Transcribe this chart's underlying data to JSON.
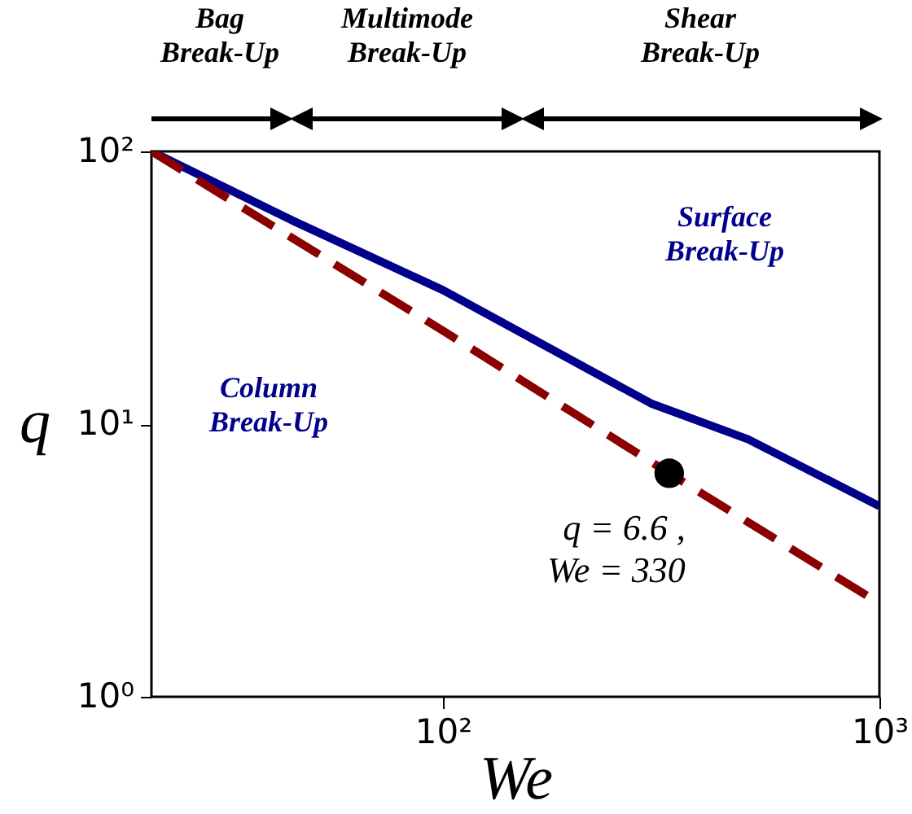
{
  "chart_data": {
    "type": "line",
    "xlabel": "We",
    "ylabel": "q",
    "log": "xy",
    "xlim": [
      21.5,
      1000
    ],
    "ylim": [
      1,
      100
    ],
    "xticks": [
      {
        "value": 100,
        "label": "10²"
      },
      {
        "value": 1000,
        "label": "10³"
      }
    ],
    "yticks": [
      {
        "value": 1,
        "label": "10⁰"
      },
      {
        "value": 10,
        "label": "10¹"
      },
      {
        "value": 100,
        "label": "10²"
      }
    ],
    "series": [
      {
        "color": "#00008b",
        "line_style": "solid",
        "x": [
          21.5,
          45,
          100,
          300,
          500,
          1000
        ],
        "values": [
          100,
          56,
          31,
          11.9,
          8.8,
          5.0
        ]
      },
      {
        "color": "#8b0000",
        "line_style": "dashed",
        "x": [
          21.5,
          100,
          330,
          1000
        ],
        "values": [
          100,
          22,
          6.6,
          2.2
        ]
      },
      {
        "type": "scatter",
        "color": "#000000",
        "marker": "circle",
        "x": [
          330
        ],
        "values": [
          6.6
        ]
      }
    ],
    "annotations": [
      "Bag\nBreak-Up",
      "Multimode\nBreak-Up",
      "Shear\nBreak-Up",
      "Column\nBreak-Up",
      "Surface\nBreak-Up",
      {
        "text": "q = 6.6 ,\nWe = 330",
        "x": 330,
        "y": 6.6
      }
    ]
  }
}
